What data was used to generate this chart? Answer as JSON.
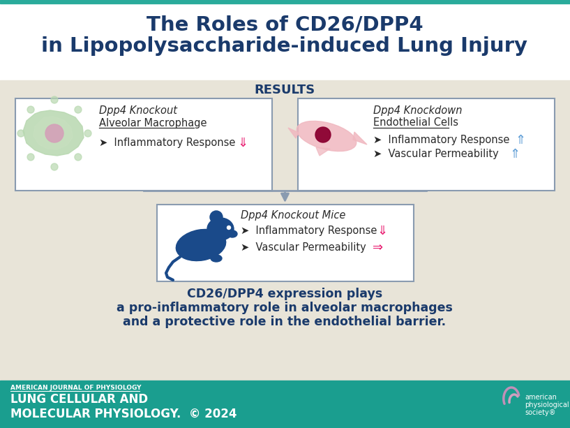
{
  "title_line1": "The Roles of CD26/DPP4",
  "title_line2": "in Lipopolysaccharide-induced Lung Injury",
  "title_color": "#1a3a6b",
  "title_top_bar_color": "#2aab9b",
  "bg_color": "#e8e4d8",
  "main_bg": "#ffffff",
  "results_label": "RESULTS",
  "results_color": "#1a3a6b",
  "box1_title_italic": "Dpp4 Knockout",
  "box1_subtitle": "Alveolar Macrophage",
  "box1_bullet1": "‣  Inflammatory Response ",
  "box1_arrow1": "⇓",
  "box1_arrow1_color": "#e8186d",
  "box2_title_italic": "Dpp4 Knockdown",
  "box2_subtitle": "Endothelial Cells",
  "box2_bullet1": "‣  Inflammatory Response ",
  "box2_bullet2": "‣  Vascular Permeability ",
  "box2_arrow1": "⇑",
  "box2_arrow2": "⇑",
  "box2_arrow_color": "#5b9bd5",
  "box3_title_italic": "Dpp4 Knockout Mice",
  "box3_bullet1": "‣  Inflammatory Response ",
  "box3_bullet2": "‣  Vascular Permeability ",
  "box3_arrow1": "⇓",
  "box3_arrow1_color": "#e8186d",
  "box3_arrow2": "⇒",
  "box3_arrow2_color": "#e8186d",
  "conclusion_line1": "CD26/DPP4 expression plays",
  "conclusion_line2": "a pro-inflammatory role in alveolar macrophages",
  "conclusion_line3": "and a protective role in the endothelial barrier.",
  "conclusion_color": "#1a3a6b",
  "footer_bg": "#1a9e8f",
  "footer_line1": "AMERICAN JOURNAL OF PHYSIOLOGY",
  "footer_line2": "LUNG CELLULAR AND",
  "footer_line3": "MOLECULAR PHYSIOLOGY.",
  "footer_year": "  © 2024",
  "footer_text_color": "#ffffff",
  "box_border_color": "#8a9bb0",
  "arrow_connector_color": "#8a9bb0",
  "mouse_color": "#1a4a8a",
  "macrophage_outer": "#b8d8b0",
  "macrophage_inner": "#c8e0c0",
  "macrophage_nucleus": "#d4a0b8",
  "cell_body_color": "#f0b8c0",
  "cell_nucleus_color": "#8b0030"
}
